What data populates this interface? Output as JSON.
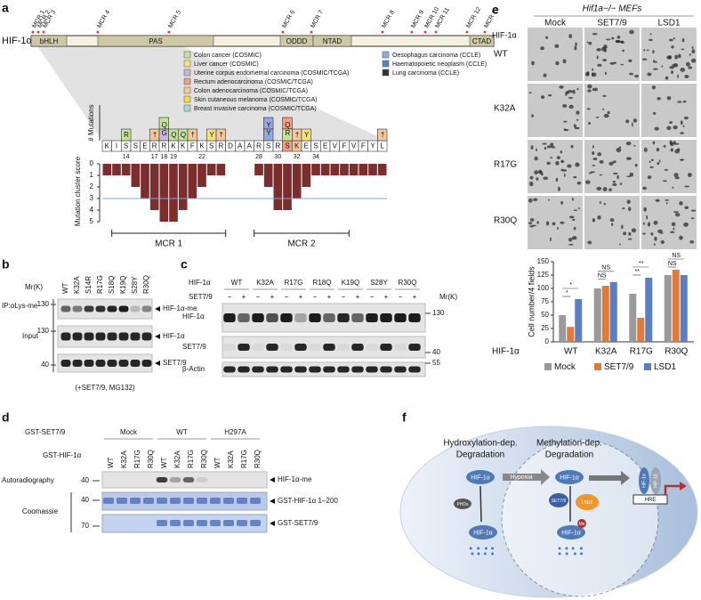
{
  "panel_a": {
    "label": "a",
    "protein": "HIF-1α",
    "mcr_top": [
      "MCR 1",
      "MCR 2",
      "MCR 3",
      "MCR 4",
      "MCR 5",
      "MCR 6",
      "MCR 7",
      "MCR 8",
      "MCR 9",
      "MCR 10",
      "MCR 11",
      "MCR 12",
      "MCR 13"
    ],
    "domains": [
      "bHLH",
      "PAS",
      "ODDD",
      "NTAD",
      "CTAD"
    ],
    "legend": [
      {
        "name": "Colon cancer (COSMIC)",
        "color": "#c6e19a"
      },
      {
        "name": "Liver cancer (COSMIC)",
        "color": "#f7e37c"
      },
      {
        "name": "Uterine corpus endometrial carcinoma (COSMIC/TCGA)",
        "color": "#c4b6dc"
      },
      {
        "name": "Rectum adenocarcinoma (COSMIC/TCGA)",
        "color": "#ef9f83"
      },
      {
        "name": "Colon adenocarcinoma (COSMIC/TCGA)",
        "color": "#f6c79b"
      },
      {
        "name": "Skin cutaneous melanoma (COSMIC/TCGA)",
        "color": "#f4dc3f"
      },
      {
        "name": "Breast invasive carcinoma (COSMIC/TCGA)",
        "color": "#a8d8d0"
      },
      {
        "name": "Oesophagus carcinoma (CCLE)",
        "color": "#94a8dc"
      },
      {
        "name": "Haematopoietic neoplasm (CCLE)",
        "color": "#5b80c8"
      },
      {
        "name": "Lung carcinoma (CCLE)",
        "color": "#333333"
      }
    ],
    "y_label_top": "# Mutations",
    "y_label_bottom": "Mutation cluster score",
    "residues": [
      "K",
      "I",
      "S",
      "S",
      "E",
      "R",
      "R",
      "K",
      "K",
      "F",
      "K",
      "S",
      "R",
      "D",
      "A",
      "A",
      "R",
      "S",
      "R",
      "S",
      "K",
      "E",
      "S",
      "E",
      "V",
      "F",
      "V",
      "F",
      "Y",
      "L"
    ],
    "mutations": [
      null,
      null,
      "R",
      null,
      null,
      "†",
      "QG",
      "Q",
      "Q",
      "†",
      null,
      "Y",
      "†",
      null,
      null,
      null,
      null,
      "YY",
      null,
      "QR",
      "†",
      "Y",
      null,
      null,
      null,
      null,
      null,
      null,
      null,
      "†"
    ],
    "positions": [
      14,
      17,
      18,
      19,
      22,
      28,
      30,
      32,
      34
    ],
    "score_ticks": [
      0,
      1,
      2,
      3,
      4,
      5
    ],
    "scores": [
      1,
      1,
      1,
      2,
      3,
      4,
      5,
      5,
      4,
      3,
      2,
      1,
      1,
      0,
      0,
      0,
      1,
      2,
      4,
      4,
      3,
      2,
      1,
      1,
      1,
      1,
      1,
      1,
      1,
      1
    ],
    "threshold": 3,
    "regions": [
      "MCR 1",
      "MCR 2"
    ]
  },
  "panel_b": {
    "label": "b",
    "lanes": [
      "WT",
      "K32A",
      "S14R",
      "R17G",
      "S18Q",
      "K19Q",
      "S28Y",
      "R30Q"
    ],
    "mr": "Mr(K)",
    "rows": [
      "IP:αLys-me",
      "Input"
    ],
    "markers": [
      130,
      130,
      40
    ],
    "bands": [
      "HIF-1α-me",
      "HIF-1α",
      "SET7/9"
    ],
    "footer": "(+SET7/9, MG132)"
  },
  "panel_c": {
    "label": "c",
    "hif_label": "HIF-1α",
    "lanes": [
      "WT",
      "K32A",
      "R17G",
      "R18Q",
      "K19Q",
      "S28Y",
      "R30Q"
    ],
    "set_label": "SET7/9",
    "signs": [
      "−",
      "+",
      "−",
      "+",
      "−",
      "+",
      "−",
      "+",
      "−",
      "+",
      "−",
      "+",
      "−",
      "+"
    ],
    "mr": "Mr(K)",
    "rows": [
      "HIF-1α",
      "SET7/9",
      "β-Actin"
    ],
    "markers": [
      130,
      40,
      55
    ]
  },
  "panel_d": {
    "label": "d",
    "set_label": "GST-SET7/9",
    "groups": [
      "Mock",
      "WT",
      "H297A"
    ],
    "hif_label": "GST-HIF-1α",
    "lanes": [
      "WT",
      "K32A",
      "R17G",
      "R30Q"
    ],
    "rows": [
      "Autoradiography",
      "Coomassie"
    ],
    "markers": [
      40,
      40,
      70
    ],
    "bands": [
      "HIF-1α-me",
      "GST-HIF-1α 1–200",
      "GST-SET7/9"
    ]
  },
  "panel_e": {
    "label": "e",
    "title": "Hif1a−/− MEFs",
    "columns": [
      "Mock",
      "SET7/9",
      "LSD1"
    ],
    "row_header": "HIF-1α",
    "rows": [
      "WT",
      "K32A",
      "R17G",
      "R30Q"
    ],
    "chart": {
      "type": "bar",
      "y_label": "Cell number/4 fields",
      "x_label": "HIF-1α",
      "categories": [
        "WT",
        "K32A",
        "R17G",
        "R30Q"
      ],
      "series": [
        {
          "name": "Mock",
          "color": "#9a9a9a",
          "values": [
            50,
            100,
            90,
            125
          ]
        },
        {
          "name": "SET7/9",
          "color": "#e07b39",
          "values": [
            28,
            105,
            45,
            135
          ]
        },
        {
          "name": "LSD1",
          "color": "#5b7fc4",
          "values": [
            80,
            112,
            120,
            125
          ]
        }
      ],
      "ylim": [
        0,
        150
      ],
      "yticks": [
        0,
        25,
        50,
        75,
        100,
        125,
        150
      ],
      "significance": [
        [
          "*",
          "*"
        ],
        [
          "NS",
          "NS"
        ],
        [
          "**",
          "**"
        ],
        [
          "NS",
          "NS"
        ]
      ]
    }
  },
  "panel_f": {
    "label": "f",
    "hydroxylation": "Hydroxylation-dep.",
    "degradation": "Degradation",
    "hypoxia": "Hypoxia",
    "methylation": "Methylation-dep.",
    "hif": "HIF-1α",
    "phds": "PHDs",
    "set": "SET7/9",
    "lsd": "LSD1",
    "me": "Me",
    "hifb": "HIF-1β",
    "hre": "HRE"
  }
}
